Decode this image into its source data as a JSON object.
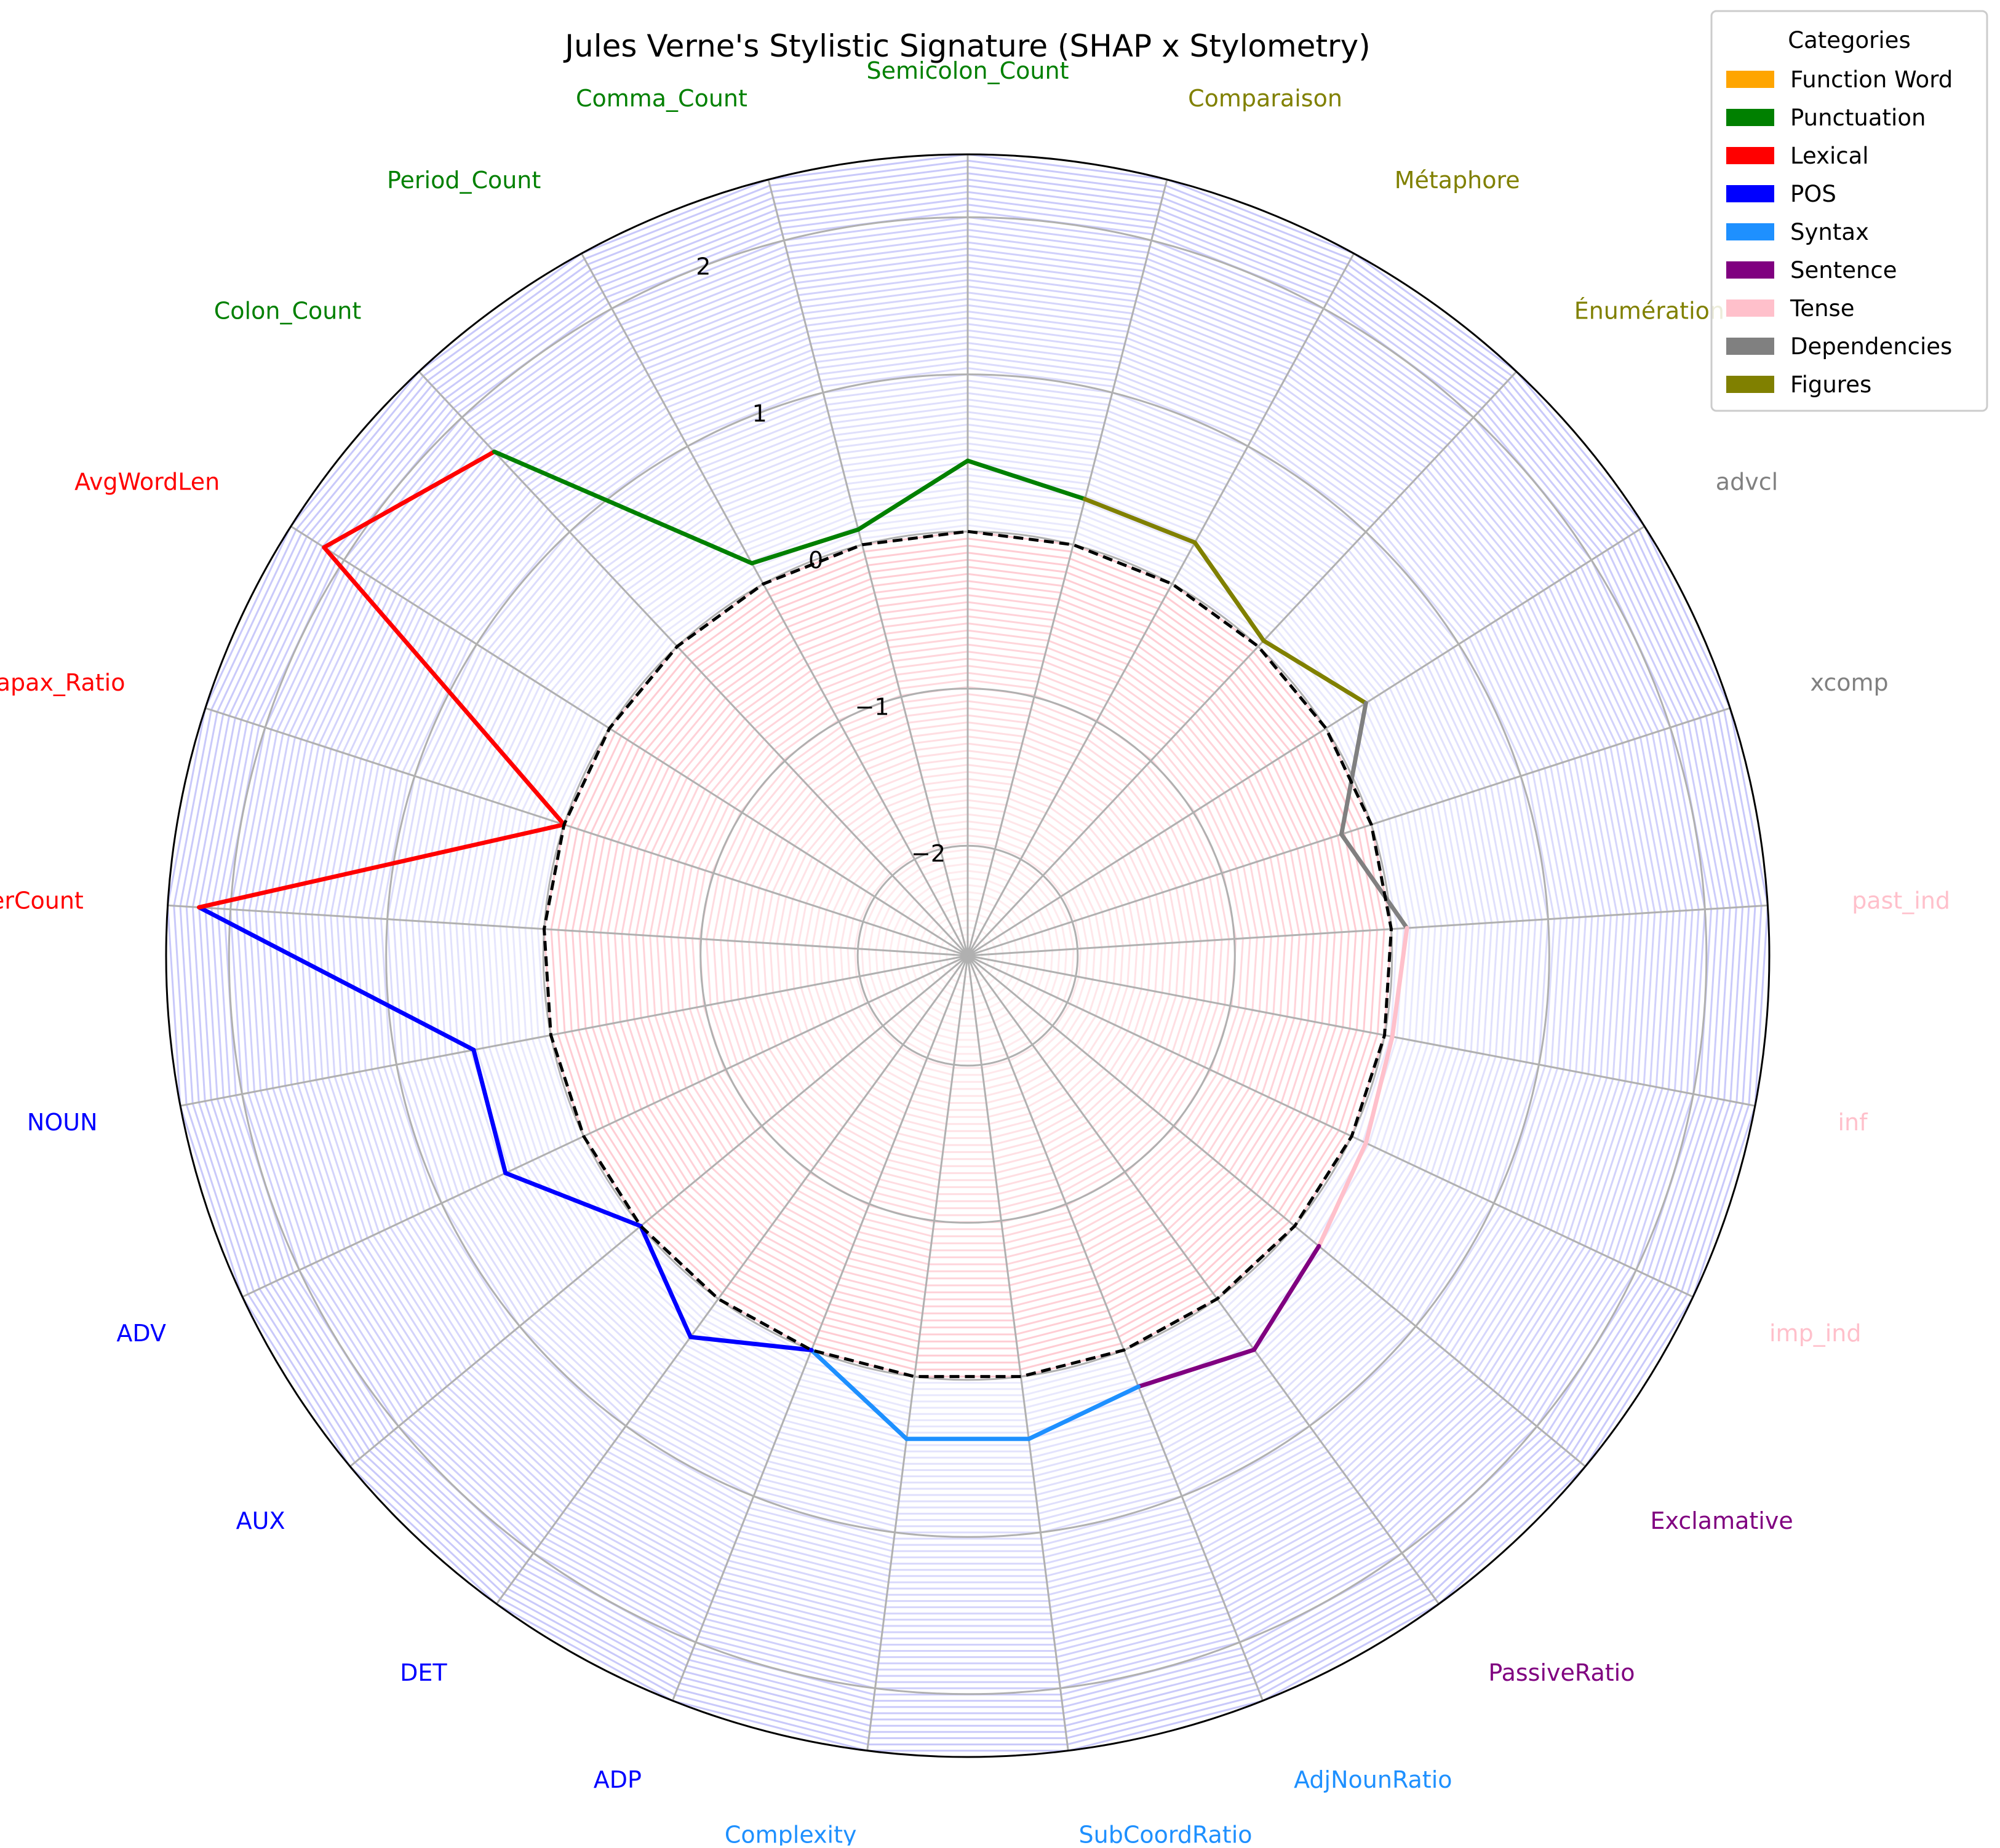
{
  "chart_data": {
    "type": "radar",
    "title": "Jules Verne's Stylistic Signature (SHAP x Stylometry)",
    "rlim": [
      -2.7,
      2.4
    ],
    "r_ticks": [
      -2,
      -1,
      0,
      1,
      2
    ],
    "r_tick_labels": [
      "−2",
      "−1",
      "0",
      "1",
      "2"
    ],
    "baseline": 0,
    "grid": true,
    "legend": {
      "title": "Categories",
      "position": "top-right",
      "items": [
        {
          "label": "Function Word",
          "color": "#ffa500"
        },
        {
          "label": "Punctuation",
          "color": "#008000"
        },
        {
          "label": "Lexical",
          "color": "#ff0000"
        },
        {
          "label": "POS",
          "color": "#0000ff"
        },
        {
          "label": "Syntax",
          "color": "#1e90ff"
        },
        {
          "label": "Sentence",
          "color": "#800080"
        },
        {
          "label": "Tense",
          "color": "#ffc0cb"
        },
        {
          "label": "Dependencies",
          "color": "#808080"
        },
        {
          "label": "Figures",
          "color": "#808000"
        }
      ]
    },
    "features": [
      {
        "name": "Semicolon_Count",
        "category": "Punctuation",
        "value": 0.45
      },
      {
        "name": "Comparaison",
        "category": "Figures",
        "value": 0.3
      },
      {
        "name": "Métaphore",
        "category": "Figures",
        "value": 0.3
      },
      {
        "name": "Énumération",
        "category": "Figures",
        "value": 0.05
      },
      {
        "name": "advcl",
        "category": "Dependencies",
        "value": 0.3
      },
      {
        "name": "xcomp",
        "category": "Dependencies",
        "value": -0.2
      },
      {
        "name": "past_ind",
        "category": "Tense",
        "value": 0.1
      },
      {
        "name": "inf",
        "category": "Tense",
        "value": 0.05
      },
      {
        "name": "imp_ind",
        "category": "Tense",
        "value": 0.1
      },
      {
        "name": "Exclamative",
        "category": "Sentence",
        "value": 0.2
      },
      {
        "name": "PassiveRatio",
        "category": "Sentence",
        "value": 0.4
      },
      {
        "name": "AdjNounRatio",
        "category": "Syntax",
        "value": 0.25
      },
      {
        "name": "SubCoordRatio",
        "category": "Syntax",
        "value": 0.4
      },
      {
        "name": "Complexity",
        "category": "Syntax",
        "value": 0.4
      },
      {
        "name": "ADP",
        "category": "POS",
        "value": 0.0
      },
      {
        "name": "DET",
        "category": "POS",
        "value": 0.3
      },
      {
        "name": "AUX",
        "category": "POS",
        "value": 0.0
      },
      {
        "name": "ADV",
        "category": "POS",
        "value": 0.55
      },
      {
        "name": "NOUN",
        "category": "POS",
        "value": 0.5
      },
      {
        "name": "MarkerCount",
        "category": "Lexical",
        "value": 2.2
      },
      {
        "name": "Hapax_Ratio",
        "category": "Lexical",
        "value": 0.0
      },
      {
        "name": "AvgWordLen",
        "category": "Lexical",
        "value": 2.15
      },
      {
        "name": "Colon_Count",
        "category": "Punctuation",
        "value": 1.7
      },
      {
        "name": "Period_Count",
        "category": "Punctuation",
        "value": 0.15
      },
      {
        "name": "Comma_Count",
        "category": "Punctuation",
        "value": 0.1
      }
    ]
  }
}
